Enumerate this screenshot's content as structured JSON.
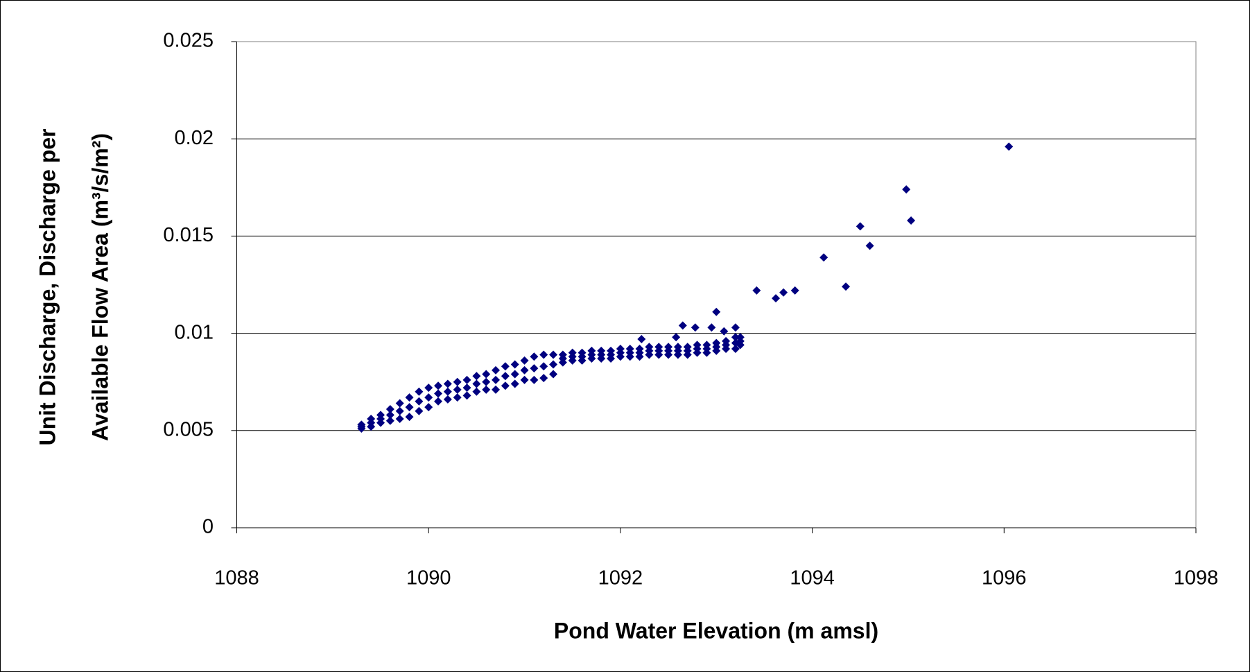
{
  "chart_data": {
    "type": "scatter",
    "xlabel": "Pond Water Elevation (m amsl)",
    "ylabel": [
      "Unit Discharge, Discharge per",
      "Available Flow Area (m³/s/m²)"
    ],
    "color": "#000080",
    "xlim": [
      1088,
      1098
    ],
    "xticks": [
      1088,
      1090,
      1092,
      1094,
      1096,
      1098
    ],
    "ylim": [
      0,
      0.025
    ],
    "yticks": [
      0,
      0.005,
      0.01,
      0.015,
      0.02,
      0.025
    ],
    "grid": true,
    "x": [
      1089.3,
      1089.3,
      1089.3,
      1089.4,
      1089.4,
      1089.4,
      1089.5,
      1089.5,
      1089.5,
      1089.6,
      1089.6,
      1089.6,
      1089.7,
      1089.7,
      1089.7,
      1089.8,
      1089.8,
      1089.8,
      1089.9,
      1089.9,
      1089.9,
      1090.0,
      1090.0,
      1090.0,
      1090.1,
      1090.1,
      1090.1,
      1090.2,
      1090.2,
      1090.2,
      1090.3,
      1090.3,
      1090.3,
      1090.4,
      1090.4,
      1090.4,
      1090.5,
      1090.5,
      1090.5,
      1090.6,
      1090.6,
      1090.6,
      1090.7,
      1090.7,
      1090.7,
      1090.8,
      1090.8,
      1090.8,
      1090.9,
      1090.9,
      1090.9,
      1091.0,
      1091.0,
      1091.0,
      1091.1,
      1091.1,
      1091.1,
      1091.2,
      1091.2,
      1091.2,
      1091.3,
      1091.3,
      1091.3,
      1091.4,
      1091.4,
      1091.4,
      1091.5,
      1091.5,
      1091.5,
      1091.6,
      1091.6,
      1091.6,
      1091.7,
      1091.7,
      1091.7,
      1091.8,
      1091.8,
      1091.8,
      1091.9,
      1091.9,
      1091.9,
      1092.0,
      1092.0,
      1092.0,
      1092.1,
      1092.1,
      1092.1,
      1092.2,
      1092.2,
      1092.2,
      1092.3,
      1092.3,
      1092.3,
      1092.4,
      1092.4,
      1092.4,
      1092.5,
      1092.5,
      1092.5,
      1092.6,
      1092.6,
      1092.6,
      1092.7,
      1092.7,
      1092.7,
      1092.8,
      1092.8,
      1092.8,
      1092.9,
      1092.9,
      1092.9,
      1093.0,
      1093.0,
      1093.0,
      1093.1,
      1093.1,
      1093.1,
      1093.2,
      1093.2,
      1093.2,
      1093.25,
      1093.25,
      1093.25,
      1096.05,
      1094.98,
      1095.03,
      1094.5,
      1094.6,
      1094.12,
      1094.35,
      1093.42,
      1093.62,
      1093.7,
      1093.82,
      1093.0,
      1092.65,
      1092.78,
      1092.95,
      1093.08,
      1093.2,
      1092.58,
      1092.22
    ],
    "values": [
      0.0051,
      0.0052,
      0.0053,
      0.0052,
      0.0054,
      0.0056,
      0.0054,
      0.0056,
      0.0058,
      0.0055,
      0.0058,
      0.0061,
      0.0056,
      0.006,
      0.0064,
      0.0057,
      0.0062,
      0.0067,
      0.006,
      0.0065,
      0.007,
      0.0062,
      0.0067,
      0.0072,
      0.0065,
      0.0069,
      0.0073,
      0.0066,
      0.007,
      0.0074,
      0.0067,
      0.0071,
      0.0075,
      0.0068,
      0.0072,
      0.0076,
      0.007,
      0.0074,
      0.0078,
      0.0071,
      0.0075,
      0.0079,
      0.0071,
      0.0076,
      0.0081,
      0.0073,
      0.0078,
      0.0083,
      0.0074,
      0.0079,
      0.0084,
      0.0076,
      0.0081,
      0.0086,
      0.0076,
      0.0082,
      0.0088,
      0.0077,
      0.0083,
      0.0089,
      0.0079,
      0.0084,
      0.0089,
      0.0085,
      0.0087,
      0.0089,
      0.0086,
      0.0088,
      0.009,
      0.0086,
      0.0088,
      0.009,
      0.0087,
      0.0089,
      0.0091,
      0.0087,
      0.0089,
      0.0091,
      0.0087,
      0.0089,
      0.0091,
      0.0088,
      0.009,
      0.0092,
      0.0088,
      0.009,
      0.0092,
      0.0088,
      0.009,
      0.0092,
      0.0089,
      0.0091,
      0.0093,
      0.0089,
      0.0091,
      0.0093,
      0.0089,
      0.0091,
      0.0093,
      0.0089,
      0.0091,
      0.0093,
      0.0089,
      0.0091,
      0.0093,
      0.009,
      0.0092,
      0.0094,
      0.009,
      0.0092,
      0.0094,
      0.0091,
      0.0093,
      0.0095,
      0.0092,
      0.0094,
      0.0096,
      0.0092,
      0.0095,
      0.0098,
      0.0094,
      0.0096,
      0.0098,
      0.0196,
      0.0174,
      0.0158,
      0.0155,
      0.0145,
      0.0139,
      0.0124,
      0.0122,
      0.0118,
      0.0121,
      0.0122,
      0.0111,
      0.0104,
      0.0103,
      0.0103,
      0.0101,
      0.0103,
      0.0098,
      0.0097
    ]
  }
}
